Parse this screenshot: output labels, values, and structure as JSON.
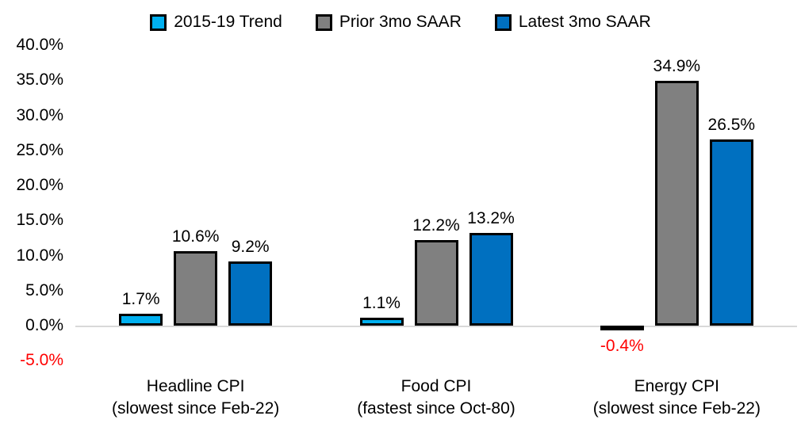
{
  "chart_data": {
    "type": "bar",
    "title": "",
    "categories": [
      "Headline CPI",
      "Food CPI",
      "Energy CPI"
    ],
    "category_notes": [
      "(slowest since Feb-22)",
      "(fastest since Oct-80)",
      "(slowest since Feb-22)"
    ],
    "series": [
      {
        "name": "2015-19 Trend",
        "color": "#00B0F0",
        "values": [
          1.7,
          1.1,
          -0.4
        ],
        "labels": [
          "1.7%",
          "1.1%",
          "-0.4%"
        ]
      },
      {
        "name": "Prior 3mo SAAR",
        "color": "#808080",
        "values": [
          10.6,
          12.2,
          34.9
        ],
        "labels": [
          "10.6%",
          "12.2%",
          "34.9%"
        ]
      },
      {
        "name": "Latest 3mo SAAR",
        "color": "#0070C0",
        "values": [
          9.2,
          13.2,
          26.5
        ],
        "labels": [
          "9.2%",
          "13.2%",
          "26.5%"
        ]
      }
    ],
    "xlabel": "",
    "ylabel": "",
    "ylim": [
      -5,
      40
    ],
    "grid": false,
    "legend_position": "top",
    "y_axis_ticks": [
      {
        "value": 40,
        "label": "40.0%"
      },
      {
        "value": 35,
        "label": "35.0%"
      },
      {
        "value": 30,
        "label": "30.0%"
      },
      {
        "value": 25,
        "label": "25.0%"
      },
      {
        "value": 20,
        "label": "20.0%"
      },
      {
        "value": 15,
        "label": "15.0%"
      },
      {
        "value": 10,
        "label": "10.0%"
      },
      {
        "value": 5,
        "label": "5.0%"
      },
      {
        "value": 0,
        "label": "0.0%"
      },
      {
        "value": -5,
        "label": "-5.0%",
        "negative": true
      }
    ]
  },
  "style": {
    "bar_border_color": "#000000",
    "axis_line_color": "#D9D9D9",
    "text_color": "#000000",
    "negative_text_color": "#FF0000"
  }
}
